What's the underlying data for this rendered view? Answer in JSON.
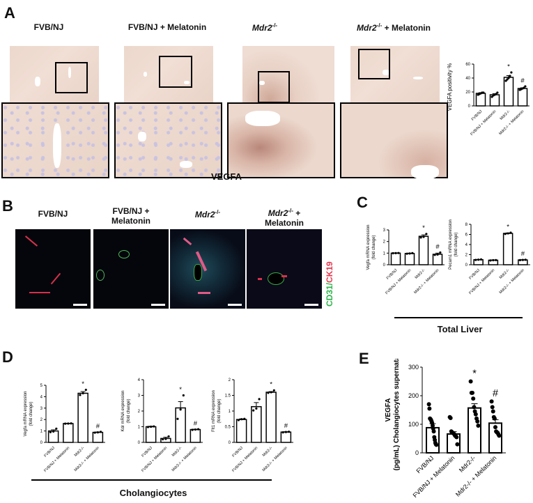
{
  "panels": {
    "A": {
      "label": "A",
      "groups": [
        "FVB/NJ",
        "FVB/NJ + Melatonin",
        "Mdr2-/-",
        "Mdr2-/- + Melatonin"
      ],
      "group_labels": [
        {
          "main": "FVB/NJ",
          "italic": "",
          "sup": "",
          "suffix": ""
        },
        {
          "main": "FVB/NJ + Melatonin",
          "italic": "",
          "sup": "",
          "suffix": ""
        },
        {
          "main": "",
          "italic": "Mdr2",
          "sup": "-/-",
          "suffix": ""
        },
        {
          "main": "",
          "italic": "Mdr2",
          "sup": "-/-",
          "suffix": " + Melatonin"
        }
      ],
      "stain_label": "VEGFA"
    },
    "B": {
      "label": "B",
      "group_labels": [
        {
          "line1": "FVB/NJ",
          "line2": ""
        },
        {
          "line1": "FVB/NJ +",
          "line2": "Melatonin"
        },
        {
          "line1": "Mdr2-/-",
          "line2": ""
        },
        {
          "line1": "Mdr2-/- +",
          "line2": "Melatonin"
        }
      ],
      "stain_green": "CD31",
      "stain_sep": "/",
      "stain_red": "CK19",
      "colors": {
        "green": "#2db34a",
        "red": "#e8394f"
      }
    },
    "C": {
      "label": "C",
      "footer": "Total Liver"
    },
    "D": {
      "label": "D",
      "footer": "Cholangiocytes"
    },
    "E": {
      "label": "E"
    }
  },
  "chart_data": [
    {
      "panel": "A",
      "type": "bar",
      "title": "",
      "ylabel": "VEGFA positivity %",
      "xlabel": "",
      "categories": [
        "FVB/NJ",
        "FVB/NJ + Melatonin",
        "Mdr2-/-",
        "Mdr2-/- + Melatonin"
      ],
      "values": [
        18,
        16,
        41,
        25
      ],
      "errors": [
        1,
        1.5,
        2.5,
        1
      ],
      "points": [
        [
          16,
          17,
          18,
          19,
          19
        ],
        [
          13,
          15,
          16,
          17,
          19
        ],
        [
          36,
          38,
          40,
          43,
          48
        ],
        [
          23,
          24,
          25,
          26,
          28
        ]
      ],
      "annotations": [
        "",
        "",
        "*",
        "#"
      ],
      "ylim": [
        0,
        60
      ],
      "yticks": [
        0,
        20,
        40,
        60
      ]
    },
    {
      "panel": "C",
      "type": "bar",
      "ylabel": "Vegfa mRNA expression (fold change)",
      "categories": [
        "FVB/NJ",
        "FVB/NJ + Melatonin",
        "Mdr2-/-",
        "Mdr2-/- + Melatonin"
      ],
      "values": [
        1.0,
        0.97,
        2.45,
        0.9
      ],
      "errors": [
        0.02,
        0.03,
        0.12,
        0.1
      ],
      "points": [
        [
          0.99,
          1.0,
          1.01
        ],
        [
          0.95,
          0.97,
          1.0
        ],
        [
          2.35,
          2.4,
          2.65
        ],
        [
          0.85,
          0.88,
          1.05
        ]
      ],
      "annotations": [
        "",
        "",
        "*",
        "#"
      ],
      "ylim": [
        0,
        3
      ],
      "yticks": [
        0,
        1,
        2,
        3
      ]
    },
    {
      "panel": "C",
      "type": "bar",
      "ylabel": "Pecam1 mRNA expression (fold change)",
      "categories": [
        "FVB/NJ",
        "FVB/NJ + Melatonin",
        "Mdr2-/-",
        "Mdr2-/- + Melatonin"
      ],
      "values": [
        1.0,
        0.9,
        6.2,
        0.95
      ],
      "errors": [
        0.05,
        0.05,
        0.1,
        0.05
      ],
      "points": [
        [
          0.95,
          1.0,
          1.05
        ],
        [
          0.85,
          0.9,
          0.92
        ],
        [
          6.1,
          6.2,
          6.35
        ],
        [
          0.92,
          0.95,
          0.98
        ]
      ],
      "annotations": [
        "",
        "",
        "*",
        "#"
      ],
      "ylim": [
        0,
        8
      ],
      "yticks": [
        0,
        2,
        4,
        6,
        8
      ]
    },
    {
      "panel": "D",
      "type": "bar",
      "ylabel": "Vegfa mRNA expression (fold change)",
      "categories": [
        "FVB/NJ",
        "FVB/NJ + Melatonin",
        "Mdr2-/-",
        "Mdr2-/- + Melatonin"
      ],
      "values": [
        1.0,
        1.65,
        4.3,
        0.88
      ],
      "errors": [
        0.1,
        0.02,
        0.15,
        0.03
      ],
      "points": [
        [
          0.9,
          0.95,
          1.2
        ],
        [
          1.64,
          1.65,
          1.66
        ],
        [
          4.15,
          4.3,
          4.6
        ],
        [
          0.85,
          0.88,
          0.92
        ]
      ],
      "annotations": [
        "",
        "",
        "*",
        "#"
      ],
      "ylim": [
        0,
        5
      ],
      "yticks": [
        0,
        1,
        2,
        3,
        4,
        5
      ]
    },
    {
      "panel": "D",
      "type": "bar",
      "ylabel": "Kdr mRNA expression (fold change)",
      "categories": [
        "FVB/NJ",
        "FVB/NJ + Melatonin",
        "Mdr2-/-",
        "Mdr2-/- + Melatonin"
      ],
      "values": [
        1.0,
        0.25,
        2.2,
        0.82
      ],
      "errors": [
        0.03,
        0.08,
        0.4,
        0.02
      ],
      "points": [
        [
          0.98,
          1.0,
          1.02
        ],
        [
          0.2,
          0.22,
          0.38
        ],
        [
          1.5,
          2.1,
          3.0
        ],
        [
          0.8,
          0.82,
          0.84
        ]
      ],
      "annotations": [
        "",
        "",
        "*",
        "#"
      ],
      "ylim": [
        0,
        4
      ],
      "yticks": [
        0,
        1,
        2,
        3,
        4
      ]
    },
    {
      "panel": "D",
      "type": "bar",
      "ylabel": "Flt1 mRNA expression (fold change)",
      "categories": [
        "FVB/NJ",
        "FVB/NJ + Melatonin",
        "Mdr2-/-",
        "Mdr2-/- + Melatonin"
      ],
      "values": [
        0.73,
        1.14,
        1.6,
        0.33
      ],
      "errors": [
        0.02,
        0.13,
        0.02,
        0.01
      ],
      "points": [
        [
          0.71,
          0.74,
          0.75
        ],
        [
          1.02,
          1.08,
          1.38
        ],
        [
          1.58,
          1.6,
          1.66
        ],
        [
          0.32,
          0.33,
          0.34
        ]
      ],
      "annotations": [
        "",
        "",
        "*",
        "#"
      ],
      "ylim": [
        0,
        2.0
      ],
      "yticks": [
        0.0,
        0.5,
        1.0,
        1.5,
        2.0
      ]
    },
    {
      "panel": "E",
      "type": "bar",
      "ylabel": "VEGFA (pg/mL) Cholangiocytes supernatant",
      "categories": [
        "FVB/NJ",
        "FVB/NJ + Melatonin",
        "Mdr2-/-",
        "Mdr2-/- + Melatonin"
      ],
      "values": [
        88,
        66,
        157,
        104
      ],
      "errors": [
        14,
        8,
        15,
        12
      ],
      "points": [
        [
          170,
          155,
          120,
          118,
          115,
          110,
          105,
          95,
          85,
          75,
          55,
          45,
          35,
          30,
          28
        ],
        [
          125,
          122,
          75,
          72,
          70,
          68,
          65,
          60,
          58,
          55,
          30
        ],
        [
          250,
          210,
          210,
          190,
          160,
          145,
          135,
          120,
          110,
          95
        ],
        [
          180,
          160,
          145,
          125,
          120,
          90,
          75,
          72,
          70,
          65,
          60
        ]
      ],
      "annotations": [
        "",
        "",
        "*",
        "#"
      ],
      "ylim": [
        0,
        300
      ],
      "yticks": [
        0,
        100,
        200,
        300
      ]
    }
  ]
}
